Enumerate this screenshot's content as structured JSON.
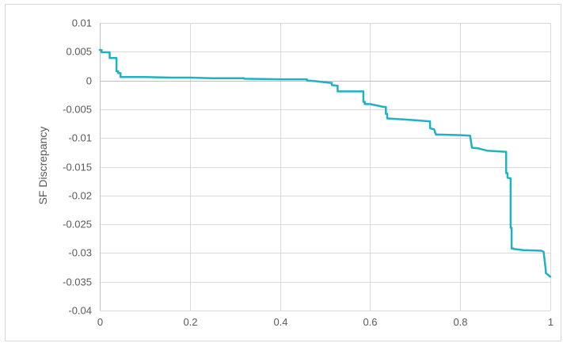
{
  "chart_data": {
    "type": "line",
    "title": "",
    "xlabel": "",
    "ylabel": "SF Discrepancy",
    "xlim": [
      0,
      1
    ],
    "ylim": [
      -0.04,
      0.01
    ],
    "grid": true,
    "legend": "none",
    "x_ticks": [
      0,
      0.2,
      0.4,
      0.6,
      0.8,
      1
    ],
    "x_tick_labels": [
      "0",
      "0.2",
      "0.4",
      "0.6",
      "0.8",
      "1"
    ],
    "y_ticks": [
      0.01,
      0.005,
      0,
      -0.005,
      -0.01,
      -0.015,
      -0.02,
      -0.025,
      -0.03,
      -0.035,
      -0.04
    ],
    "y_tick_labels": [
      "0.01",
      "0.005",
      "0",
      "-0.005",
      "-0.01",
      "-0.015",
      "-0.02",
      "-0.025",
      "-0.03",
      "-0.035",
      "-0.04"
    ],
    "line_color": "#1fb1c4",
    "grid_color": "#d9d9d9",
    "axis_color": "#bfbfbf",
    "series": [
      {
        "x": [
          0,
          0.004,
          0.004,
          0.022,
          0.022,
          0.037,
          0.037,
          0.041,
          0.041,
          0.046,
          0.046,
          0.1,
          0.16,
          0.2,
          0.25,
          0.3,
          0.32,
          0.32,
          0.4,
          0.455,
          0.46,
          0.46,
          0.475,
          0.51,
          0.515,
          0.515,
          0.525,
          0.528,
          0.528,
          0.585,
          0.585,
          0.588,
          0.588,
          0.6,
          0.63,
          0.635,
          0.635,
          0.638,
          0.638,
          0.66,
          0.7,
          0.73,
          0.733,
          0.733,
          0.742,
          0.742,
          0.746,
          0.746,
          0.8,
          0.822,
          0.822,
          0.826,
          0.826,
          0.84,
          0.86,
          0.86,
          0.9,
          0.902,
          0.902,
          0.905,
          0.905,
          0.91,
          0.912,
          0.912,
          0.914,
          0.914,
          0.918,
          0.918,
          0.94,
          0.98,
          0.985,
          0.985,
          0.99,
          0.99,
          1.0
        ],
        "y": [
          0.0053,
          0.0053,
          0.0049,
          0.0049,
          0.0039,
          0.0039,
          0.0016,
          0.0016,
          0.0013,
          0.0013,
          0.0006,
          0.0006,
          0.0005,
          0.0005,
          0.0004,
          0.0004,
          0.0004,
          0.0003,
          0.0002,
          0.0002,
          0.0002,
          0.0,
          -0.0001,
          -0.0004,
          -0.0004,
          -0.0008,
          -0.0009,
          -0.0009,
          -0.0019,
          -0.0019,
          -0.0037,
          -0.0037,
          -0.0041,
          -0.0041,
          -0.0046,
          -0.0046,
          -0.0058,
          -0.0058,
          -0.0066,
          -0.0067,
          -0.0069,
          -0.0071,
          -0.0071,
          -0.0083,
          -0.0085,
          -0.0085,
          -0.0094,
          -0.0094,
          -0.0095,
          -0.0096,
          -0.0096,
          -0.0117,
          -0.0117,
          -0.0118,
          -0.0122,
          -0.0122,
          -0.0124,
          -0.0124,
          -0.0161,
          -0.0161,
          -0.0169,
          -0.017,
          -0.017,
          -0.0256,
          -0.0256,
          -0.0292,
          -0.0292,
          -0.0293,
          -0.0295,
          -0.0296,
          -0.0298,
          -0.0298,
          -0.033,
          -0.0335,
          -0.0341
        ]
      }
    ]
  }
}
